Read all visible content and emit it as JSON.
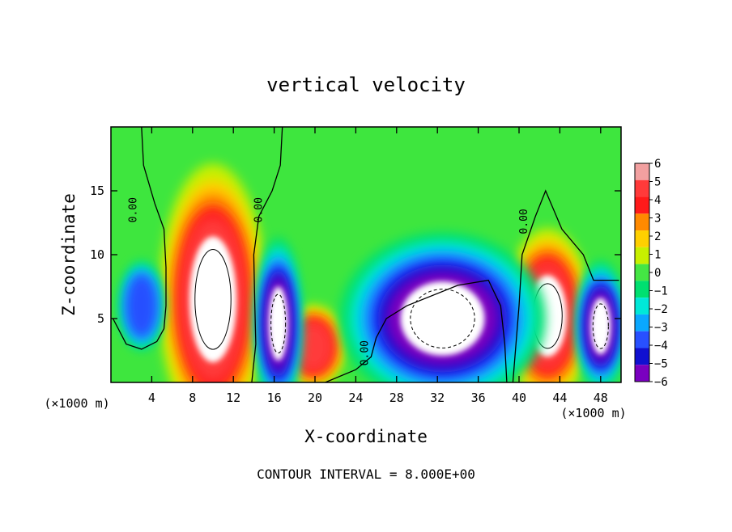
{
  "chart_data": {
    "type": "heatmap",
    "title": "vertical velocity",
    "xlabel": "X-coordinate",
    "ylabel": "Z-coordinate",
    "x_unit_left": "(×1000 m)",
    "x_unit_right": "(×1000 m)",
    "footer": "CONTOUR INTERVAL = 8.000E+00",
    "xlim": [
      0,
      50
    ],
    "ylim": [
      0,
      20
    ],
    "x_ticks": [
      4,
      8,
      12,
      16,
      20,
      24,
      28,
      32,
      36,
      40,
      44,
      48
    ],
    "y_ticks": [
      5,
      10,
      15
    ],
    "contour_labels": [
      {
        "text": "0.00",
        "x": 2.5,
        "y": 13.5
      },
      {
        "text": "0.00",
        "x": 14.8,
        "y": 13.5
      },
      {
        "text": "0.00",
        "x": 25.2,
        "y": 2.3
      },
      {
        "text": "0.00",
        "x": 40.8,
        "y": 12.6
      }
    ],
    "colorbar": {
      "ticks": [
        "6",
        "5",
        "4",
        "3",
        "2",
        "1",
        "0",
        "−1",
        "−2",
        "−3",
        "−4",
        "−5",
        "−6"
      ],
      "colors": [
        "#f2a0a0",
        "#ff3a3a",
        "#ff1a1a",
        "#ff8a00",
        "#ffd000",
        "#c8f000",
        "#44e644",
        "#00e070",
        "#00e8d8",
        "#0aa8ff",
        "#2850ff",
        "#1010d0",
        "#7a00c0"
      ]
    },
    "features": [
      {
        "name": "updraft",
        "value": 6,
        "x": 10.0,
        "y": 6.5,
        "rx": 4.2,
        "ry": 8.5
      },
      {
        "name": "updraft",
        "value": 6,
        "x": 42.8,
        "y": 5.2,
        "rx": 3.4,
        "ry": 5.5
      },
      {
        "name": "updraft",
        "value": 5,
        "x": 19.8,
        "y": 2.8,
        "rx": 2.5,
        "ry": 2.6
      },
      {
        "name": "downdraft",
        "value": -6,
        "x": 16.4,
        "y": 4.6,
        "rx": 1.7,
        "ry": 5.0
      },
      {
        "name": "downdraft",
        "value": -6,
        "x": 32.5,
        "y": 5.0,
        "rx": 7.5,
        "ry": 5.0
      },
      {
        "name": "downdraft",
        "value": -6,
        "x": 48.0,
        "y": 4.4,
        "rx": 1.8,
        "ry": 3.8
      },
      {
        "name": "downdraft",
        "value": -4,
        "x": 3.0,
        "y": 6.0,
        "rx": 1.6,
        "ry": 2.6
      }
    ]
  }
}
